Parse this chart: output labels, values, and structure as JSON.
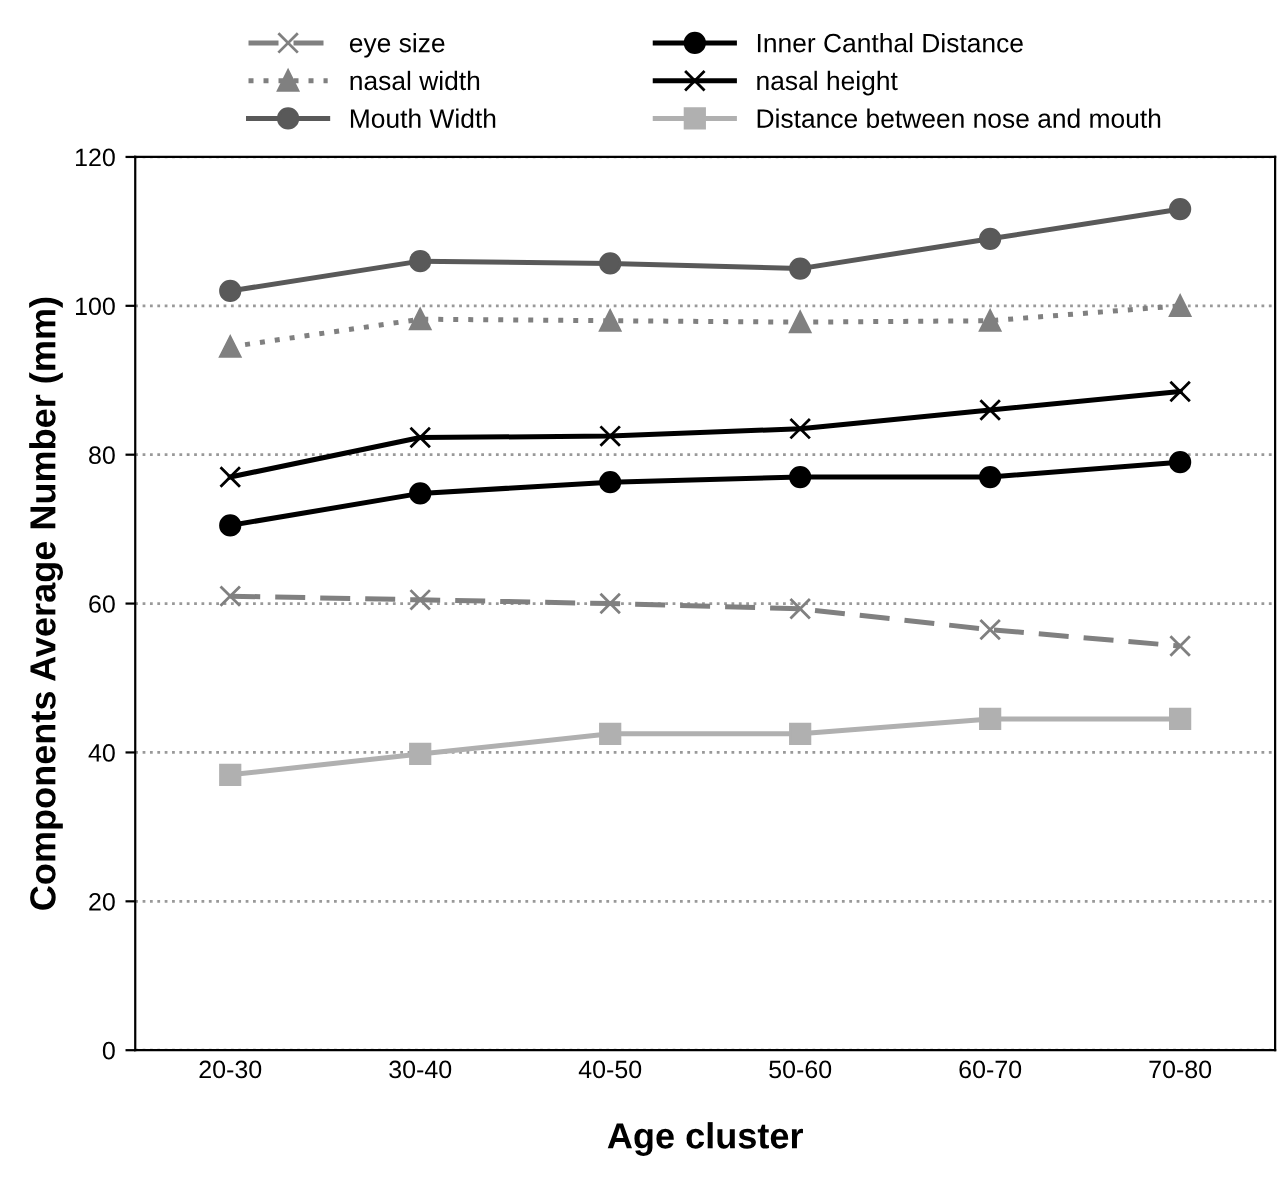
{
  "chart_data": {
    "type": "line",
    "xlabel": "Age cluster",
    "ylabel": "Components Average Number (mm)",
    "categories": [
      "20-30",
      "30-40",
      "40-50",
      "50-60",
      "60-70",
      "70-80"
    ],
    "series": [
      {
        "name": "eye size",
        "color": "#808080",
        "marker": "cross",
        "line_style": "dashed",
        "values": [
          61,
          60.5,
          60,
          59.3,
          56.5,
          54.3
        ]
      },
      {
        "name": "nasal width",
        "color": "#808080",
        "marker": "triangle",
        "line_style": "dotted",
        "values": [
          94.5,
          98.2,
          98,
          97.8,
          98,
          100
        ]
      },
      {
        "name": "Mouth Width",
        "color": "#595959",
        "marker": "circle",
        "line_style": "solid",
        "values": [
          102,
          106,
          105.7,
          105,
          109,
          113
        ]
      },
      {
        "name": "Inner Canthal Distance",
        "color": "#000000",
        "marker": "circle",
        "line_style": "solid",
        "values": [
          70.5,
          74.8,
          76.3,
          77,
          77,
          79
        ]
      },
      {
        "name": "nasal height",
        "color": "#000000",
        "marker": "cross",
        "line_style": "solid",
        "values": [
          77,
          82.3,
          82.5,
          83.5,
          86,
          88.5
        ]
      },
      {
        "name": "Distance between nose and mouth",
        "color": "#b0b0b0",
        "marker": "square",
        "line_style": "solid",
        "values": [
          37,
          39.8,
          42.5,
          42.5,
          44.5,
          44.5
        ]
      }
    ],
    "ylim": [
      0,
      120
    ],
    "yticks": [
      0,
      20,
      40,
      60,
      80,
      100,
      120
    ],
    "grid": "y",
    "legend": "top"
  }
}
